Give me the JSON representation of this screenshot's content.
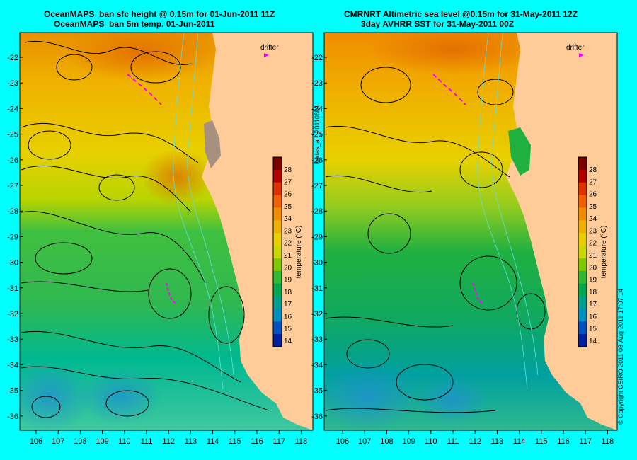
{
  "left_panel": {
    "title_line1": "OceanMAPS_ban sfc height @ 0.15m for 01-Jun-2011 11Z",
    "title_line2": "OceanMAPS_ban 5m temp. 01-Jun-2011",
    "drifter_label": "drifter"
  },
  "right_panel": {
    "title_line1": "CMRNRT Altimetric sea level  @0.15m  for 31-May-2011 12Z",
    "title_line2": "3day AVHRR SST for 31-May-2011 00Z",
    "drifter_label": "drifter"
  },
  "side_labels": {
    "middle": "bodas_an_20110601",
    "right": "© Copyright CSIRO 2011   03-Aug-2011 17:07:14"
  },
  "axes": {
    "lon_ticks": [
      "106",
      "107",
      "108",
      "109",
      "110",
      "111",
      "112",
      "113",
      "114",
      "115",
      "116",
      "117",
      "118"
    ],
    "lat_ticks": [
      "-22",
      "-23",
      "-24",
      "-25",
      "-26",
      "-27",
      "-28",
      "-29",
      "-30",
      "-31",
      "-32",
      "-33",
      "-34",
      "-35",
      "-36"
    ]
  },
  "colorbar": {
    "label": "temperature (°C)",
    "ticks": [
      "28",
      "27",
      "26",
      "25",
      "24",
      "23",
      "22",
      "21",
      "20",
      "19",
      "18",
      "17",
      "16",
      "15",
      "14"
    ],
    "colors": [
      "#7a0000",
      "#b00000",
      "#e03000",
      "#f06000",
      "#f08c00",
      "#f0b000",
      "#e8d000",
      "#c8d800",
      "#80c800",
      "#30b830",
      "#00a850",
      "#00a090",
      "#0090c0",
      "#0050c0",
      "#0020a0"
    ]
  },
  "colors": {
    "background": "#00ffff",
    "land": "#ffcc99",
    "drifter": "#ff00ff"
  }
}
